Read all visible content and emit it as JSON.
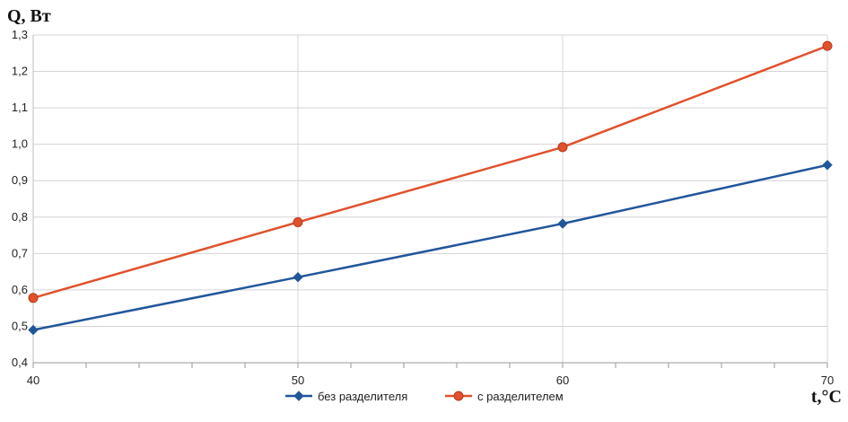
{
  "chart_data": {
    "type": "line",
    "title": "",
    "ylabel": "Q, Вт",
    "xlabel": "t,°C",
    "x": [
      40,
      50,
      60,
      70
    ],
    "x_tick_labels": [
      "40",
      "50",
      "60",
      "70"
    ],
    "xlim": [
      40,
      70
    ],
    "ylim": [
      0.4,
      1.3
    ],
    "y_ticks": [
      0.4,
      0.5,
      0.6,
      0.7,
      0.8,
      0.9,
      1.0,
      1.1,
      1.2,
      1.3
    ],
    "y_tick_labels": [
      "0,4",
      "0,5",
      "0,6",
      "0,7",
      "0,8",
      "0,9",
      "1,0",
      "1,1",
      "1,2",
      "1,3"
    ],
    "grid": true,
    "legend_position": "bottom",
    "series": [
      {
        "name": "без разделителя",
        "color": "#22569b",
        "marker": "diamond",
        "values": [
          0.49,
          0.635,
          0.782,
          0.943
        ]
      },
      {
        "name": "с разделителем",
        "color": "#e0522c",
        "marker": "circle",
        "values": [
          0.578,
          0.786,
          0.992,
          1.27
        ]
      }
    ]
  }
}
